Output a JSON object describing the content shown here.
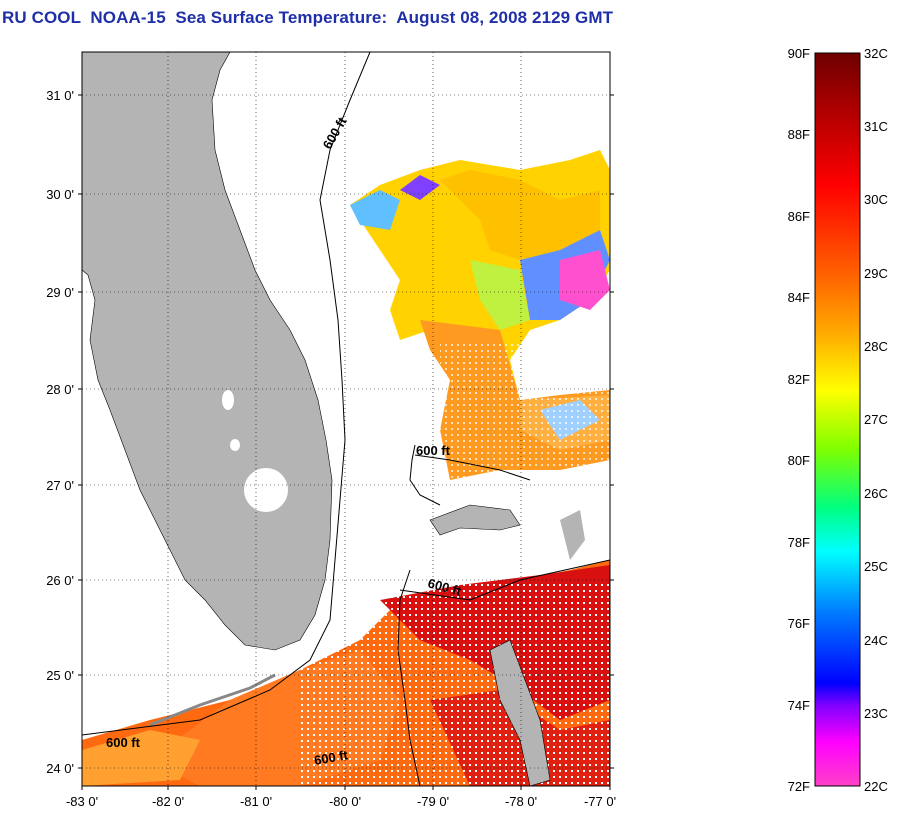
{
  "title": "RU COOL  NOAA-15  Sea Surface Temperature:  August 08, 2008 2129 GMT",
  "map": {
    "lon_labels": [
      "-83 0'",
      "-82 0'",
      "-81 0'",
      "-80 0'",
      "-79 0'",
      "-78 0'",
      "-77 0'"
    ],
    "lat_labels": [
      "31 0'",
      "30 0'",
      "29 0'",
      "28 0'",
      "27 0'",
      "26 0'",
      "25 0'",
      "24 0'"
    ],
    "lon_range": [
      -83,
      -77
    ],
    "lat_range": [
      23.8,
      31.4
    ],
    "land_color": "#b4b4b4",
    "contour_label": "600 ft",
    "contour_labels": [
      "600 ft",
      "600 ft",
      "600 ft",
      "600 ft"
    ]
  },
  "colorbar": {
    "fahrenheit_labels": [
      "90F",
      "88F",
      "86F",
      "84F",
      "82F",
      "80F",
      "78F",
      "76F",
      "74F",
      "72F"
    ],
    "celsius_labels": [
      "32C",
      "31C",
      "30C",
      "29C",
      "28C",
      "27C",
      "26C",
      "25C",
      "24C",
      "23C",
      "22C"
    ],
    "range_c": [
      22,
      32
    ],
    "colors_top_to_bottom": [
      "#6e0000",
      "#c80000",
      "#ff2000",
      "#ff7000",
      "#ffc000",
      "#ffff00",
      "#a0f000",
      "#00ff80",
      "#00ffff",
      "#0080ff",
      "#0000ff",
      "#8000ff",
      "#ff00ff",
      "#ff40c0"
    ]
  }
}
